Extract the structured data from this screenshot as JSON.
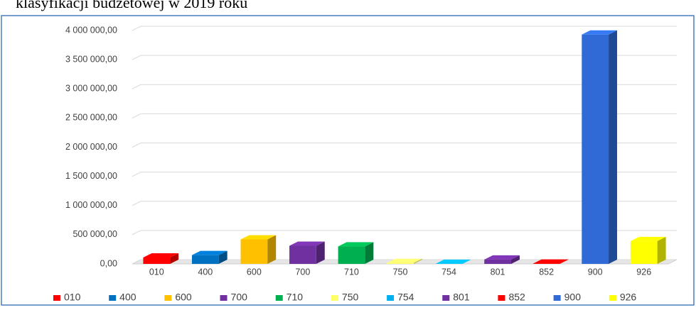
{
  "chart_data": {
    "type": "bar3d",
    "title": "klasyfikacji budżetowej w 2019 roku",
    "categories": [
      "010",
      "400",
      "600",
      "700",
      "710",
      "750",
      "754",
      "801",
      "852",
      "900",
      "926"
    ],
    "values": [
      110000,
      150000,
      420000,
      310000,
      300000,
      15000,
      2000,
      75000,
      5000,
      3930000,
      390000
    ],
    "colors": [
      "#ff0000",
      "#0070c0",
      "#ffc000",
      "#7030a0",
      "#00b050",
      "#ffff66",
      "#00b0f0",
      "#7030a0",
      "#ff0000",
      "#2f6ad6",
      "#ffff00"
    ],
    "ylim": [
      0,
      4000000
    ],
    "yticks": [
      {
        "value": 0,
        "label": "0,00"
      },
      {
        "value": 500000,
        "label": "500 000,00"
      },
      {
        "value": 1000000,
        "label": "1 000 000,00"
      },
      {
        "value": 1500000,
        "label": "1 500 000,00"
      },
      {
        "value": 2000000,
        "label": "2 000 000,00"
      },
      {
        "value": 2500000,
        "label": "2 500 000,00"
      },
      {
        "value": 3000000,
        "label": "3 000 000,00"
      },
      {
        "value": 3500000,
        "label": "3 500 000,00"
      },
      {
        "value": 4000000,
        "label": "4 000 000,00"
      }
    ],
    "grid": true
  }
}
